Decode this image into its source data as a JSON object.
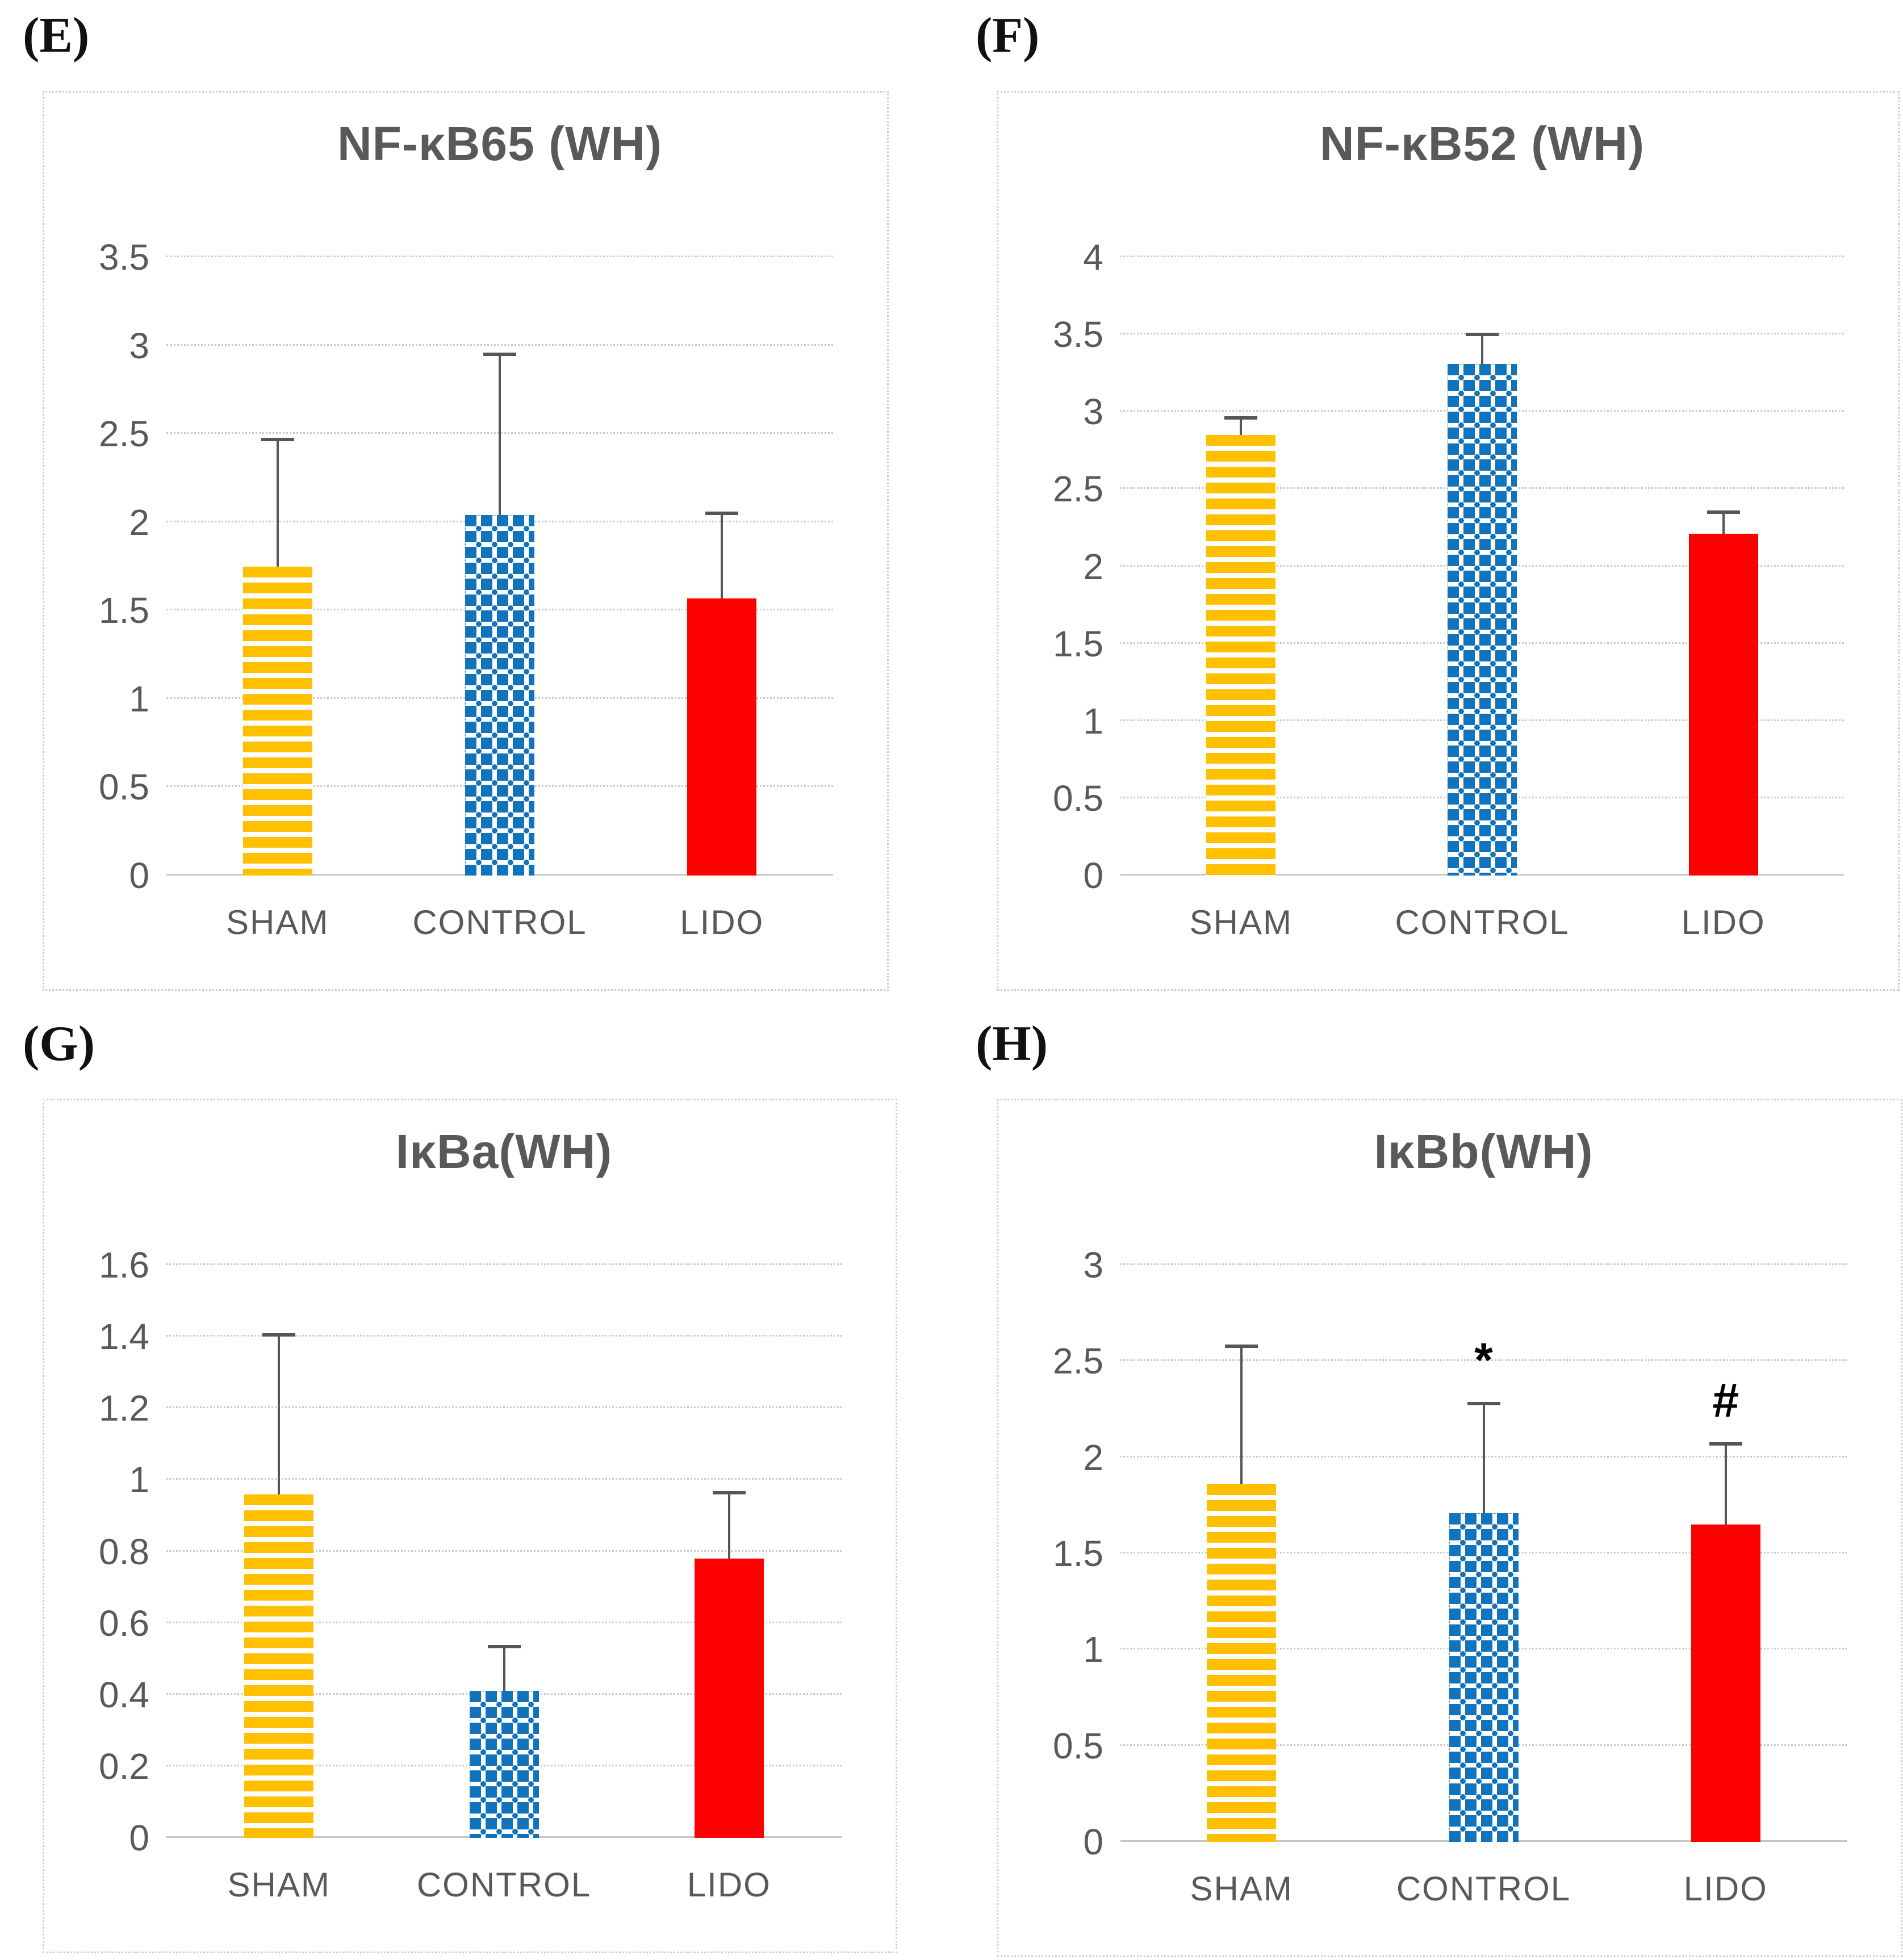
{
  "colors": {
    "sham_gold": "#FFC000",
    "control_blue": "#1173BC",
    "lido_red": "#FF0000",
    "axis_text": "#595959",
    "gridline": "#CACACA",
    "error_bar": "#565656"
  },
  "chart_data": [
    {
      "type": "bar",
      "panel_letter": "(E)",
      "title": "NF-κB65 (WH)",
      "categories": [
        "SHAM",
        "CONTROL",
        "LIDO"
      ],
      "values": [
        1.75,
        2.04,
        1.57
      ],
      "error_top": [
        2.46,
        2.94,
        2.04
      ],
      "annotations": [
        "",
        "",
        ""
      ],
      "xlabel": "",
      "ylabel": "",
      "ylim": [
        0,
        3.5
      ],
      "grid": true,
      "legend_position": "none",
      "yticks": [
        {
          "v": 3.5,
          "t": "3.5"
        },
        {
          "v": 3,
          "t": "3"
        },
        {
          "v": 2.5,
          "t": "2.5"
        },
        {
          "v": 2,
          "t": "2"
        },
        {
          "v": 1.5,
          "t": "1.5"
        },
        {
          "v": 1,
          "t": "1"
        },
        {
          "v": 0.5,
          "t": "0.5"
        },
        {
          "v": 0,
          "t": "0"
        }
      ]
    },
    {
      "type": "bar",
      "panel_letter": "(F)",
      "title": "NF-κB52 (WH)",
      "categories": [
        "SHAM",
        "CONTROL",
        "LIDO"
      ],
      "values": [
        2.85,
        3.31,
        2.21
      ],
      "error_top": [
        2.95,
        3.49,
        2.34
      ],
      "annotations": [
        "",
        "",
        ""
      ],
      "xlabel": "",
      "ylabel": "",
      "ylim": [
        0,
        4
      ],
      "grid": true,
      "legend_position": "none",
      "yticks": [
        {
          "v": 4,
          "t": "4"
        },
        {
          "v": 3.5,
          "t": "3.5"
        },
        {
          "v": 3,
          "t": "3"
        },
        {
          "v": 2.5,
          "t": "2.5"
        },
        {
          "v": 2,
          "t": "2"
        },
        {
          "v": 1.5,
          "t": "1.5"
        },
        {
          "v": 1,
          "t": "1"
        },
        {
          "v": 0.5,
          "t": "0.5"
        },
        {
          "v": 0,
          "t": "0"
        }
      ]
    },
    {
      "type": "bar",
      "panel_letter": "(G)",
      "title": "IκBa(WH)",
      "categories": [
        "SHAM",
        "CONTROL",
        "LIDO"
      ],
      "values": [
        0.96,
        0.41,
        0.78
      ],
      "error_top": [
        1.4,
        0.53,
        0.96
      ],
      "annotations": [
        "",
        "",
        ""
      ],
      "xlabel": "",
      "ylabel": "",
      "ylim": [
        0,
        1.6
      ],
      "grid": true,
      "legend_position": "none",
      "yticks": [
        {
          "v": 1.6,
          "t": "1.6"
        },
        {
          "v": 1.4,
          "t": "1.4"
        },
        {
          "v": 1.2,
          "t": "1.2"
        },
        {
          "v": 1,
          "t": "1"
        },
        {
          "v": 0.8,
          "t": "0.8"
        },
        {
          "v": 0.6,
          "t": "0.6"
        },
        {
          "v": 0.4,
          "t": "0.4"
        },
        {
          "v": 0.2,
          "t": "0.2"
        },
        {
          "v": 0,
          "t": "0"
        }
      ]
    },
    {
      "type": "bar",
      "panel_letter": "(H)",
      "title": "IκBb(WH)",
      "categories": [
        "SHAM",
        "CONTROL",
        "LIDO"
      ],
      "values": [
        1.86,
        1.71,
        1.65
      ],
      "error_top": [
        2.57,
        2.27,
        2.06
      ],
      "annotations": [
        "",
        "*",
        "#"
      ],
      "xlabel": "",
      "ylabel": "",
      "ylim": [
        0,
        3
      ],
      "grid": true,
      "legend_position": "none",
      "yticks": [
        {
          "v": 3,
          "t": "3"
        },
        {
          "v": 2.5,
          "t": "2.5"
        },
        {
          "v": 2,
          "t": "2"
        },
        {
          "v": 1.5,
          "t": "1.5"
        },
        {
          "v": 1,
          "t": "1"
        },
        {
          "v": 0.5,
          "t": "0.5"
        },
        {
          "v": 0,
          "t": "0"
        }
      ]
    }
  ]
}
